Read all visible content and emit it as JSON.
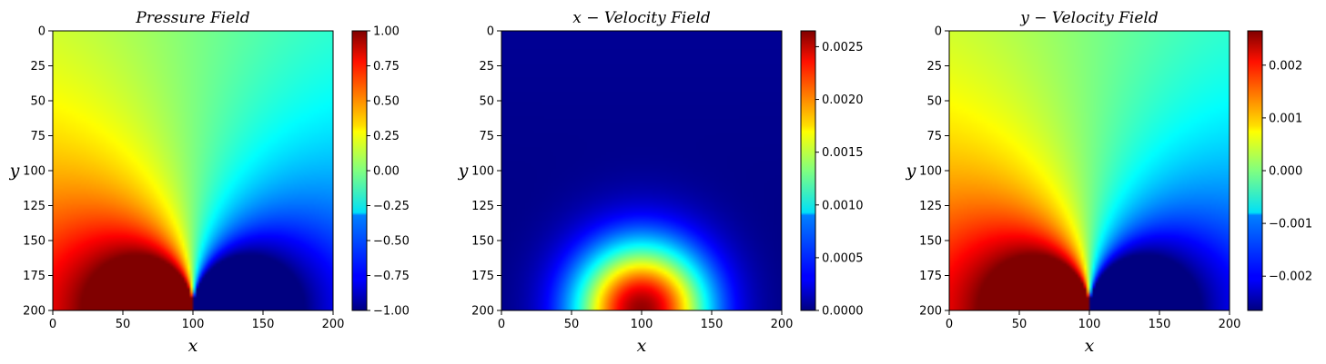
{
  "chart_data": [
    {
      "type": "heatmap",
      "title": "Pressure Field",
      "title_prefix": "",
      "xlabel": "x",
      "ylabel": "y",
      "x_ticks": [
        "0",
        "50",
        "100",
        "150",
        "200"
      ],
      "y_ticks": [
        "0",
        "25",
        "50",
        "75",
        "100",
        "125",
        "150",
        "175",
        "200"
      ],
      "xlim": [
        0,
        200
      ],
      "ylim": [
        200,
        0
      ],
      "colormap": "jet",
      "field": "pressure",
      "vmin": -1.0,
      "vmax": 1.0,
      "colorbar_ticks": [
        {
          "value": -1.0,
          "label": "−1.00"
        },
        {
          "value": -0.75,
          "label": "−0.75"
        },
        {
          "value": -0.5,
          "label": "−0.50"
        },
        {
          "value": -0.25,
          "label": "−0.25"
        },
        {
          "value": 0.0,
          "label": "0.00"
        },
        {
          "value": 0.25,
          "label": "0.25"
        },
        {
          "value": 0.5,
          "label": "0.50"
        },
        {
          "value": 0.75,
          "label": "0.75"
        },
        {
          "value": 1.0,
          "label": "1.00"
        }
      ]
    },
    {
      "type": "heatmap",
      "title": "Velocity Field",
      "title_prefix": "x −",
      "xlabel": "x",
      "ylabel": "y",
      "x_ticks": [
        "0",
        "50",
        "100",
        "150",
        "200"
      ],
      "y_ticks": [
        "0",
        "25",
        "50",
        "75",
        "100",
        "125",
        "150",
        "175",
        "200"
      ],
      "xlim": [
        0,
        200
      ],
      "ylim": [
        200,
        0
      ],
      "colormap": "jet",
      "field": "x-velocity",
      "vmin": 0.0,
      "vmax": 0.00265,
      "colorbar_ticks": [
        {
          "value": 0.0,
          "label": "0.0000"
        },
        {
          "value": 0.0005,
          "label": "0.0005"
        },
        {
          "value": 0.001,
          "label": "0.0010"
        },
        {
          "value": 0.0015,
          "label": "0.0015"
        },
        {
          "value": 0.002,
          "label": "0.0020"
        },
        {
          "value": 0.0025,
          "label": "0.0025"
        }
      ]
    },
    {
      "type": "heatmap",
      "title": "Velocity Field",
      "title_prefix": "y −",
      "xlabel": "x",
      "ylabel": "y",
      "x_ticks": [
        "0",
        "50",
        "100",
        "150",
        "200"
      ],
      "y_ticks": [
        "0",
        "25",
        "50",
        "75",
        "100",
        "125",
        "150",
        "175",
        "200"
      ],
      "xlim": [
        0,
        200
      ],
      "ylim": [
        200,
        0
      ],
      "colormap": "jet",
      "field": "y-velocity",
      "vmin": -0.00265,
      "vmax": 0.00265,
      "colorbar_ticks": [
        {
          "value": -0.002,
          "label": "−0.002"
        },
        {
          "value": -0.001,
          "label": "−0.001"
        },
        {
          "value": 0.0,
          "label": "0.000"
        },
        {
          "value": 0.001,
          "label": "0.001"
        },
        {
          "value": 0.002,
          "label": "0.002"
        }
      ]
    }
  ]
}
